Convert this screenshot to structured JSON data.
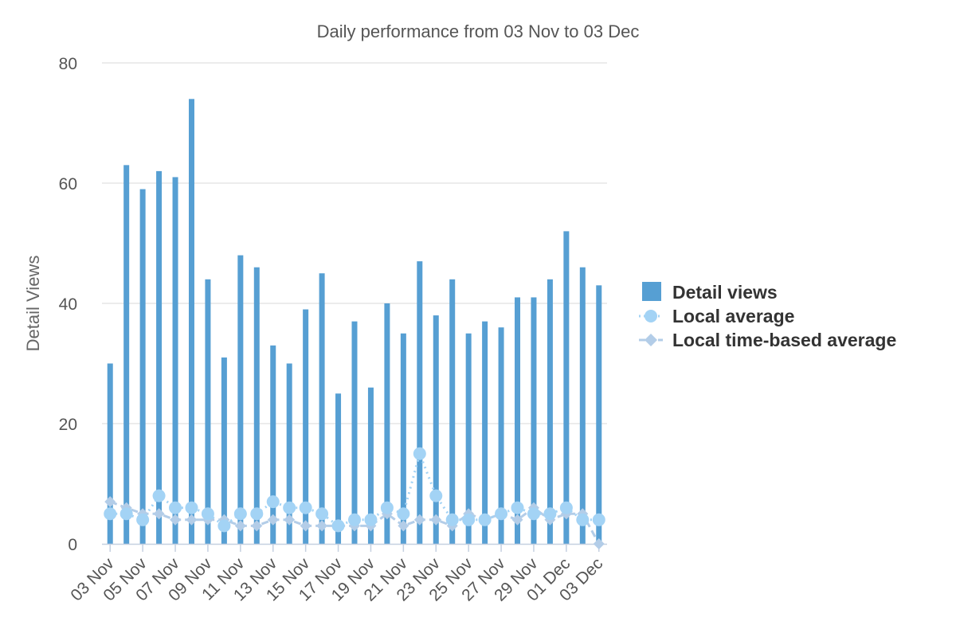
{
  "chart_data": {
    "type": "bar",
    "title": "Daily performance from 03 Nov to 03 Dec",
    "xlabel": "",
    "ylabel": "Detail Views",
    "ylim": [
      0,
      80
    ],
    "yticks": [
      0,
      20,
      40,
      60,
      80
    ],
    "grid": true,
    "legend_position": "right",
    "categories": [
      "03 Nov",
      "04 Nov",
      "05 Nov",
      "06 Nov",
      "07 Nov",
      "08 Nov",
      "09 Nov",
      "10 Nov",
      "11 Nov",
      "12 Nov",
      "13 Nov",
      "14 Nov",
      "15 Nov",
      "16 Nov",
      "17 Nov",
      "18 Nov",
      "19 Nov",
      "20 Nov",
      "21 Nov",
      "22 Nov",
      "23 Nov",
      "24 Nov",
      "25 Nov",
      "26 Nov",
      "27 Nov",
      "28 Nov",
      "29 Nov",
      "30 Nov",
      "01 Dec",
      "02 Dec",
      "03 Dec"
    ],
    "x_tick_labels": [
      "03 Nov",
      "05 Nov",
      "07 Nov",
      "09 Nov",
      "11 Nov",
      "13 Nov",
      "15 Nov",
      "17 Nov",
      "19 Nov",
      "21 Nov",
      "23 Nov",
      "25 Nov",
      "27 Nov",
      "29 Nov",
      "01 Dec",
      "03 Dec"
    ],
    "series": [
      {
        "name": "Detail views",
        "kind": "bar",
        "color": "#569fd3",
        "values": [
          30,
          63,
          59,
          62,
          61,
          74,
          44,
          31,
          48,
          46,
          33,
          30,
          39,
          45,
          25,
          37,
          26,
          40,
          35,
          47,
          38,
          44,
          35,
          37,
          36,
          41,
          41,
          44,
          52,
          46,
          43
        ]
      },
      {
        "name": "Local average",
        "kind": "dotted-line-circle",
        "color": "#a3d3f5",
        "values": [
          5,
          5,
          4,
          8,
          6,
          6,
          5,
          3,
          5,
          5,
          7,
          6,
          6,
          5,
          3,
          4,
          4,
          6,
          5,
          15,
          8,
          4,
          4,
          4,
          5,
          6,
          5,
          5,
          6,
          4,
          4
        ]
      },
      {
        "name": "Local time-based average",
        "kind": "dashed-line-diamond",
        "color": "#b3cde8",
        "values": [
          7,
          6,
          5,
          5,
          4,
          4,
          4,
          4,
          3,
          3,
          4,
          4,
          3,
          3,
          3,
          3,
          3,
          5,
          3,
          4,
          4,
          3,
          5,
          4,
          5,
          4,
          6,
          4,
          5,
          5,
          0
        ]
      }
    ]
  }
}
